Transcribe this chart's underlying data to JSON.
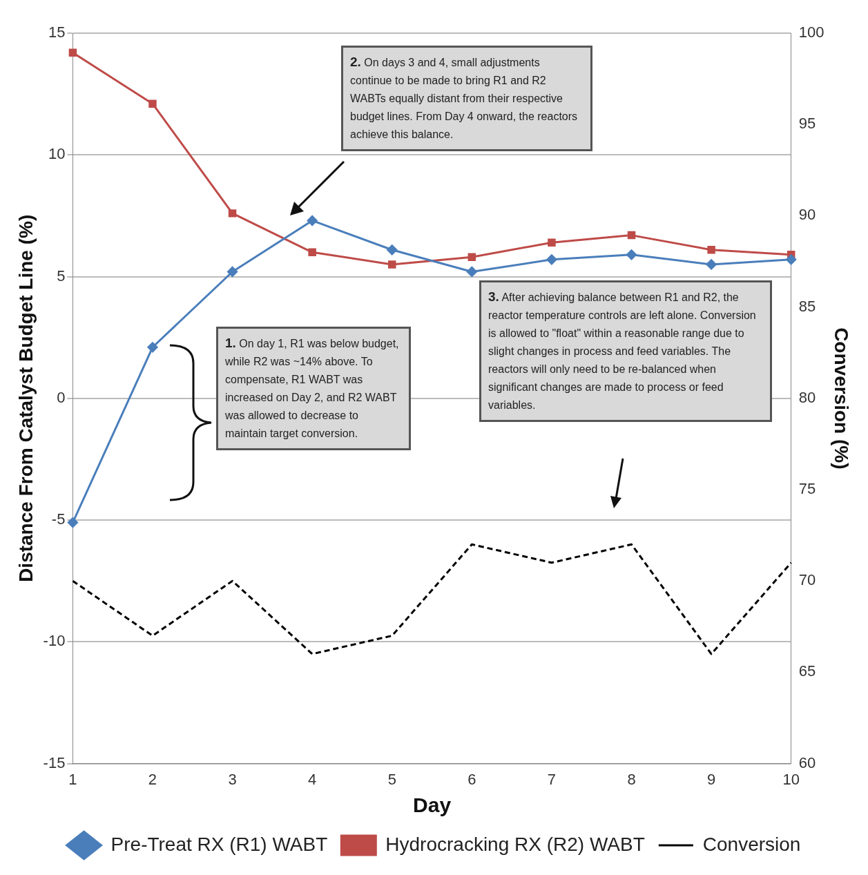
{
  "chart_data": {
    "type": "line",
    "xlabel": "Day",
    "ylabel": "Distance From Catalyst Budget Line (%)",
    "y2label": "Conversion (%)",
    "categories": [
      "1",
      "2",
      "3",
      "4",
      "5",
      "6",
      "7",
      "8",
      "9",
      "10"
    ],
    "series": [
      {
        "name": "Pre-Treat RX (R1) WABT",
        "color": "#4a7ebb",
        "marker": "diamond",
        "line_style": "solid",
        "values": [
          -5.1,
          2.1,
          5.2,
          7.3,
          6.1,
          5.2,
          5.7,
          5.9,
          5.5,
          5.7
        ]
      },
      {
        "name": "Hydrocracking RX (R2) WABT",
        "color": "#be4b48",
        "marker": "square",
        "line_style": "solid",
        "values": [
          14.2,
          12.1,
          7.6,
          6.0,
          5.5,
          5.8,
          6.4,
          6.7,
          6.1,
          5.9
        ]
      },
      {
        "name": "Conversion",
        "color": "#000000",
        "marker": "none",
        "line_style": "dashed",
        "axis": "y2",
        "values": [
          70,
          67,
          70,
          66,
          67,
          72,
          71,
          72,
          66,
          71
        ]
      }
    ],
    "ylim": [
      -15,
      15
    ],
    "yticks": [
      -15,
      -10,
      -5,
      0,
      5,
      10,
      15
    ],
    "y2lim": [
      60,
      100
    ],
    "y2ticks": [
      60,
      65,
      70,
      75,
      80,
      85,
      90,
      95,
      100
    ],
    "grid": "y",
    "legend": "bottom",
    "annotations": [
      "1. On day 1, R1 was below budget, while R2 was ~14% above.  To compensate, R1 WABT was increased on Day 2, and R2 WABT was allowed to decrease to maintain target conversion.",
      "2. On days 3 and 4, small adjustments continue to be made to bring R1 and R2 WABTs equally distant from their respective budget lines.  From Day 4 onward, the reactors achieve this balance.",
      "3. After achieving balance between R1 and R2, the reactor temperature controls are left alone. Conversion is allowed to \"float\" within a reasonable range due to slight changes in process and feed variables.  The reactors will only need to be re-balanced when significant changes are made to process or feed variables."
    ]
  }
}
